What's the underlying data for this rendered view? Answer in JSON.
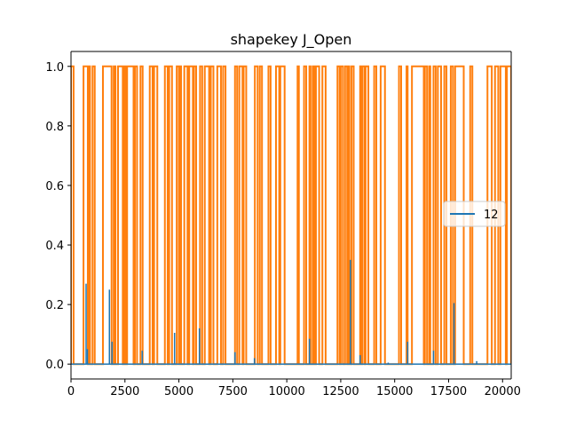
{
  "chart_data": {
    "type": "line",
    "title": "shapekey J_Open",
    "xlabel": "",
    "ylabel": "",
    "xlim": [
      0,
      20400
    ],
    "ylim": [
      -0.05,
      1.05
    ],
    "x_ticks": [
      0,
      2500,
      5000,
      7500,
      10000,
      12500,
      15000,
      17500,
      20000
    ],
    "y_ticks": [
      0.0,
      0.2,
      0.4,
      0.6,
      0.8,
      1.0
    ],
    "x_tick_labels": [
      "0",
      "2500",
      "5000",
      "7500",
      "10000",
      "12500",
      "15000",
      "17500",
      "20000"
    ],
    "y_tick_labels": [
      "0.0",
      "0.2",
      "0.4",
      "0.6",
      "0.8",
      "1.0"
    ],
    "grid": false,
    "legend_position": "center-right",
    "series": [
      {
        "name": "12",
        "color": "#1f77b4",
        "style": "spikes",
        "baseline": 0,
        "spikes": [
          [
            700,
            0.27
          ],
          [
            760,
            0.05
          ],
          [
            1780,
            0.25
          ],
          [
            1900,
            0.075
          ],
          [
            3300,
            0.045
          ],
          [
            4800,
            0.105
          ],
          [
            5950,
            0.12
          ],
          [
            7600,
            0.04
          ],
          [
            8500,
            0.02
          ],
          [
            11050,
            0.085
          ],
          [
            12950,
            0.35
          ],
          [
            13400,
            0.03
          ],
          [
            14700,
            0.005
          ],
          [
            15600,
            0.075
          ],
          [
            16800,
            0.045
          ],
          [
            17750,
            0.205
          ],
          [
            18800,
            0.01
          ]
        ]
      },
      {
        "name": "",
        "color": "#ff7f0e",
        "style": "binary-pulses",
        "low": 0,
        "high": 1,
        "pulses": [
          [
            0,
            120
          ],
          [
            580,
            780
          ],
          [
            820,
            880
          ],
          [
            1000,
            1100
          ],
          [
            1480,
            1880
          ],
          [
            1980,
            2060
          ],
          [
            2180,
            2400
          ],
          [
            2480,
            2560
          ],
          [
            2600,
            2900
          ],
          [
            2960,
            3060
          ],
          [
            3220,
            3320
          ],
          [
            3650,
            3780
          ],
          [
            3850,
            4000
          ],
          [
            4350,
            4480
          ],
          [
            4550,
            4680
          ],
          [
            4900,
            5000
          ],
          [
            5050,
            5100
          ],
          [
            5250,
            5400
          ],
          [
            5480,
            5650
          ],
          [
            5700,
            5800
          ],
          [
            5980,
            6080
          ],
          [
            6200,
            6400
          ],
          [
            6480,
            6600
          ],
          [
            6780,
            6950
          ],
          [
            7050,
            7160
          ],
          [
            7600,
            7700
          ],
          [
            7800,
            7950
          ],
          [
            8000,
            8120
          ],
          [
            8520,
            8650
          ],
          [
            8750,
            8850
          ],
          [
            9150,
            9250
          ],
          [
            9500,
            9650
          ],
          [
            9700,
            9900
          ],
          [
            10500,
            10560
          ],
          [
            10800,
            10900
          ],
          [
            11050,
            11100
          ],
          [
            11200,
            11280
          ],
          [
            11350,
            11500
          ],
          [
            11650,
            11800
          ],
          [
            12350,
            12450
          ],
          [
            12500,
            12600
          ],
          [
            12700,
            12800
          ],
          [
            12850,
            12900
          ],
          [
            13000,
            13100
          ],
          [
            13400,
            13450
          ],
          [
            13500,
            13600
          ],
          [
            13650,
            13780
          ],
          [
            14050,
            14150
          ],
          [
            14350,
            14550
          ],
          [
            15200,
            15300
          ],
          [
            15550,
            15600
          ],
          [
            15800,
            16350
          ],
          [
            16400,
            16500
          ],
          [
            16600,
            16650
          ],
          [
            16800,
            16900
          ],
          [
            17000,
            17150
          ],
          [
            17300,
            17400
          ],
          [
            17600,
            17700
          ],
          [
            17800,
            18200
          ],
          [
            18500,
            18600
          ],
          [
            19300,
            19500
          ],
          [
            19650,
            19800
          ],
          [
            19900,
            20150
          ],
          [
            20200,
            20400
          ]
        ]
      }
    ]
  }
}
